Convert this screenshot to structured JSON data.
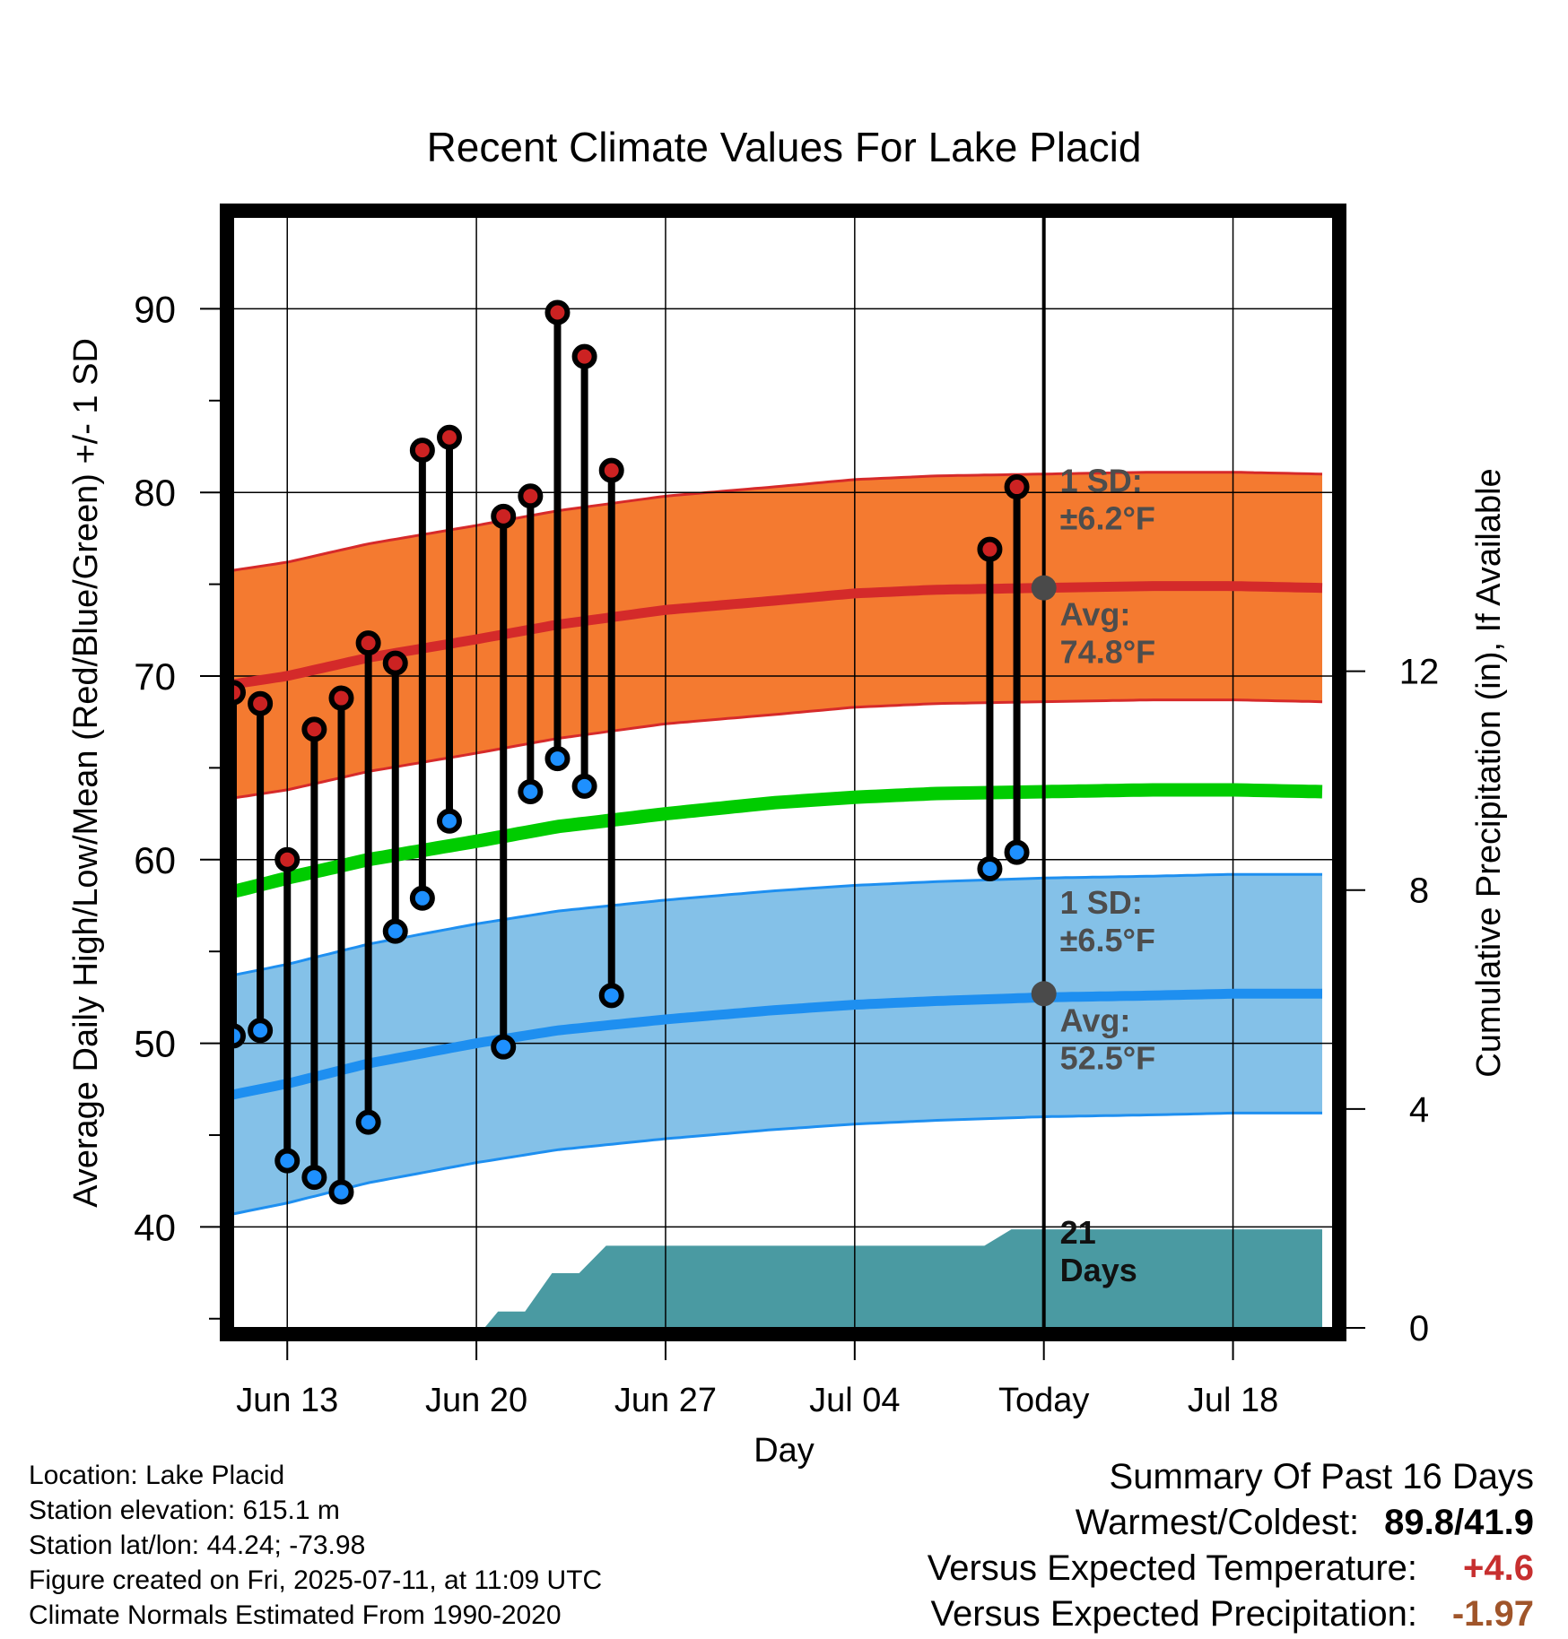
{
  "chart_data": {
    "type": "climate-range",
    "title": "Recent Climate Values For Lake Placid",
    "xlabel": "Day",
    "ylabel": "Average Daily High/Low/Mean (Red/Blue/Green) +/- 1 SD",
    "y2label": "Cumulative Precipitation (in), If Available",
    "ylim": [
      34.5,
      95
    ],
    "y2lim": [
      0,
      20.3
    ],
    "yticks": [
      40,
      50,
      60,
      70,
      80,
      90
    ],
    "y2ticks": [
      0,
      4,
      8,
      12
    ],
    "xlim": [
      0,
      40.7
    ],
    "xtick_labels": [
      {
        "x": 2,
        "label": "Jun 13"
      },
      {
        "x": 9,
        "label": "Jun 20"
      },
      {
        "x": 16,
        "label": "Jun 27"
      },
      {
        "x": 23,
        "label": "Jul 04"
      },
      {
        "x": 30,
        "label": "Today"
      },
      {
        "x": 37,
        "label": "Jul 18"
      }
    ],
    "today_x": 30,
    "normals": {
      "days": [
        -0.7,
        2,
        5,
        9,
        12,
        16,
        20,
        23,
        26,
        30,
        34,
        37,
        40.3
      ],
      "high_avg": [
        69.4,
        70.0,
        71.0,
        72.0,
        72.8,
        73.6,
        74.1,
        74.5,
        74.7,
        74.8,
        74.9,
        74.9,
        74.8
      ],
      "high_sd": 6.2,
      "mean_avg": [
        58.0,
        59.0,
        60.0,
        61.0,
        61.8,
        62.5,
        63.1,
        63.4,
        63.6,
        63.7,
        63.8,
        63.8,
        63.7
      ],
      "low_avg": [
        47.0,
        47.8,
        48.9,
        50.0,
        50.7,
        51.3,
        51.8,
        52.1,
        52.3,
        52.5,
        52.6,
        52.7,
        52.7
      ],
      "low_sd": 6.5
    },
    "observations": [
      {
        "x": 0,
        "high": 69.1,
        "low": 50.4
      },
      {
        "x": 1,
        "high": 68.5,
        "low": 50.7
      },
      {
        "x": 2,
        "high": 60.0,
        "low": 43.6
      },
      {
        "x": 3,
        "high": 67.1,
        "low": 42.7
      },
      {
        "x": 4,
        "high": 68.8,
        "low": 41.9
      },
      {
        "x": 5,
        "high": 71.8,
        "low": 45.7
      },
      {
        "x": 6,
        "high": 70.7,
        "low": 56.1
      },
      {
        "x": 7,
        "high": 82.3,
        "low": 57.9
      },
      {
        "x": 8,
        "high": 83.0,
        "low": 62.1
      },
      {
        "x": 10,
        "high": 78.7,
        "low": 49.8
      },
      {
        "x": 11,
        "high": 79.8,
        "low": 63.7
      },
      {
        "x": 12,
        "high": 89.8,
        "low": 65.5
      },
      {
        "x": 13,
        "high": 87.4,
        "low": 64.0
      },
      {
        "x": 14,
        "high": 81.2,
        "low": 52.6
      },
      {
        "x": 28,
        "high": 76.9,
        "low": 59.5
      },
      {
        "x": 29,
        "high": 80.3,
        "low": 60.4
      }
    ],
    "precipitation": [
      {
        "x": -0.7,
        "value": 0
      },
      {
        "x": 9.3,
        "value": 0
      },
      {
        "x": 9.8,
        "value": 0.3
      },
      {
        "x": 10.8,
        "value": 0.3
      },
      {
        "x": 11.8,
        "value": 1.0
      },
      {
        "x": 12.8,
        "value": 1.0
      },
      {
        "x": 13.8,
        "value": 1.5
      },
      {
        "x": 27.8,
        "value": 1.5
      },
      {
        "x": 28.8,
        "value": 1.8
      },
      {
        "x": 40.3,
        "value": 1.8
      }
    ],
    "annotations": {
      "high_sd_label": "1 SD:",
      "high_sd_value": "±6.2°F",
      "high_avg_label": "Avg:",
      "high_avg_value": "74.8°F",
      "low_sd_label": "1 SD:",
      "low_sd_value": "±6.5°F",
      "low_avg_label": "Avg:",
      "low_avg_value": "52.5°F",
      "days_count": "21",
      "days_label": "Days"
    },
    "colors": {
      "high_band": "#f47a30",
      "high_edge": "#d62a2a",
      "high_line": "#d42a2a",
      "low_band": "#84c1e8",
      "low_edge": "#1e8ff0",
      "low_line": "#1e8ff0",
      "mean_line": "#00cc00",
      "precip": "#4a9aa2",
      "high_dot": "#cc2222",
      "low_dot": "#1e90ff",
      "avg_dot": "#4a4a4a",
      "annotation": "#4d4d4d"
    }
  },
  "footer": {
    "location": "Location: Lake Placid",
    "elevation": "Station elevation: 615.1 m",
    "latlon": "Station lat/lon: 44.24; -73.98",
    "created": "Figure created on Fri, 2025-07-11, at 11:09 UTC",
    "normals": "Climate Normals Estimated From 1990-2020"
  },
  "summary": {
    "title": "Summary Of Past 16 Days",
    "warmest_label": "Warmest/Coldest:",
    "warmest_value": "89.8/41.9",
    "temp_label": "Versus Expected Temperature:",
    "temp_value": "+4.6",
    "precip_label": "Versus Expected Precipitation:",
    "precip_value": "-1.97"
  }
}
